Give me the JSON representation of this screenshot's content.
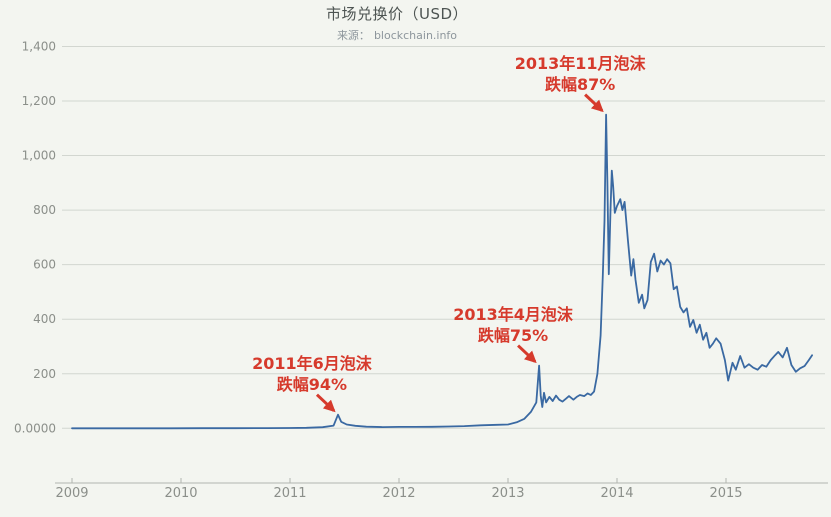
{
  "colors": {
    "background": "#f3f5f0",
    "line": "#3a69a2",
    "grid": "#d2d6d0",
    "axis": "#b2b5af",
    "tick_text": "#8b8f8a",
    "title_text": "#4d5452",
    "subtitle_text": "#8d969c",
    "annotation": "#d63a2c"
  },
  "chart_data": {
    "type": "line",
    "title": "市场兑换价（USD）",
    "source_label": "来源：",
    "source_value": "blockchain.info",
    "xlabel": "",
    "ylabel": "",
    "legend": "none",
    "grid": "horizontal",
    "xlim": [
      2009,
      2015.85
    ],
    "ylim": [
      0,
      1400
    ],
    "x_ticks": [
      2009,
      2010,
      2011,
      2012,
      2013,
      2014,
      2015
    ],
    "y_ticks": [
      {
        "label": "0.0000",
        "value": 0
      },
      {
        "label": "200",
        "value": 200
      },
      {
        "label": "400",
        "value": 400
      },
      {
        "label": "600",
        "value": 600
      },
      {
        "label": "800",
        "value": 800
      },
      {
        "label": "1,000",
        "value": 1000
      },
      {
        "label": "1,200",
        "value": 1200
      },
      {
        "label": "1,400",
        "value": 1400
      }
    ],
    "series": [
      {
        "name": "市场兑换价 (USD)",
        "points": [
          [
            2009.0,
            0
          ],
          [
            2009.3,
            0
          ],
          [
            2009.6,
            0
          ],
          [
            2009.9,
            0
          ],
          [
            2010.2,
            0.3
          ],
          [
            2010.5,
            0.3
          ],
          [
            2010.8,
            0.6
          ],
          [
            2011.0,
            1
          ],
          [
            2011.15,
            2
          ],
          [
            2011.3,
            4
          ],
          [
            2011.4,
            10
          ],
          [
            2011.44,
            50
          ],
          [
            2011.47,
            24
          ],
          [
            2011.52,
            14
          ],
          [
            2011.6,
            9
          ],
          [
            2011.7,
            6
          ],
          [
            2011.85,
            4.5
          ],
          [
            2012.0,
            5
          ],
          [
            2012.15,
            5
          ],
          [
            2012.3,
            5.5
          ],
          [
            2012.45,
            6.5
          ],
          [
            2012.6,
            8
          ],
          [
            2012.75,
            11
          ],
          [
            2012.9,
            13
          ],
          [
            2013.0,
            14
          ],
          [
            2013.08,
            22
          ],
          [
            2013.15,
            35
          ],
          [
            2013.21,
            60
          ],
          [
            2013.26,
            95
          ],
          [
            2013.285,
            230
          ],
          [
            2013.3,
            120
          ],
          [
            2013.315,
            78
          ],
          [
            2013.33,
            130
          ],
          [
            2013.35,
            95
          ],
          [
            2013.38,
            115
          ],
          [
            2013.41,
            100
          ],
          [
            2013.44,
            120
          ],
          [
            2013.47,
            105
          ],
          [
            2013.5,
            98
          ],
          [
            2013.53,
            108
          ],
          [
            2013.56,
            118
          ],
          [
            2013.6,
            105
          ],
          [
            2013.63,
            115
          ],
          [
            2013.66,
            122
          ],
          [
            2013.7,
            118
          ],
          [
            2013.73,
            128
          ],
          [
            2013.76,
            122
          ],
          [
            2013.79,
            135
          ],
          [
            2013.82,
            200
          ],
          [
            2013.85,
            340
          ],
          [
            2013.87,
            560
          ],
          [
            2013.885,
            760
          ],
          [
            2013.9,
            1150
          ],
          [
            2013.912,
            900
          ],
          [
            2013.925,
            565
          ],
          [
            2013.94,
            800
          ],
          [
            2013.952,
            945
          ],
          [
            2013.965,
            885
          ],
          [
            2013.98,
            790
          ],
          [
            2014.0,
            815
          ],
          [
            2014.03,
            840
          ],
          [
            2014.05,
            800
          ],
          [
            2014.07,
            830
          ],
          [
            2014.1,
            690
          ],
          [
            2014.13,
            560
          ],
          [
            2014.15,
            620
          ],
          [
            2014.17,
            545
          ],
          [
            2014.2,
            460
          ],
          [
            2014.23,
            490
          ],
          [
            2014.25,
            440
          ],
          [
            2014.28,
            470
          ],
          [
            2014.31,
            610
          ],
          [
            2014.34,
            640
          ],
          [
            2014.37,
            575
          ],
          [
            2014.4,
            615
          ],
          [
            2014.43,
            600
          ],
          [
            2014.46,
            620
          ],
          [
            2014.49,
            605
          ],
          [
            2014.52,
            510
          ],
          [
            2014.55,
            520
          ],
          [
            2014.58,
            445
          ],
          [
            2014.61,
            425
          ],
          [
            2014.64,
            440
          ],
          [
            2014.67,
            372
          ],
          [
            2014.7,
            397
          ],
          [
            2014.73,
            350
          ],
          [
            2014.76,
            380
          ],
          [
            2014.79,
            325
          ],
          [
            2014.82,
            350
          ],
          [
            2014.85,
            295
          ],
          [
            2014.88,
            310
          ],
          [
            2014.91,
            330
          ],
          [
            2014.95,
            310
          ],
          [
            2014.99,
            250
          ],
          [
            2015.02,
            175
          ],
          [
            2015.06,
            240
          ],
          [
            2015.09,
            215
          ],
          [
            2015.13,
            265
          ],
          [
            2015.17,
            222
          ],
          [
            2015.21,
            235
          ],
          [
            2015.25,
            222
          ],
          [
            2015.29,
            215
          ],
          [
            2015.33,
            232
          ],
          [
            2015.37,
            226
          ],
          [
            2015.41,
            250
          ],
          [
            2015.45,
            268
          ],
          [
            2015.48,
            280
          ],
          [
            2015.52,
            260
          ],
          [
            2015.56,
            295
          ],
          [
            2015.6,
            232
          ],
          [
            2015.64,
            207
          ],
          [
            2015.68,
            220
          ],
          [
            2015.72,
            228
          ],
          [
            2015.76,
            250
          ],
          [
            2015.79,
            268
          ]
        ]
      }
    ],
    "annotations": [
      {
        "lines": [
          "2013年11月泡沫",
          "跌幅87%"
        ],
        "target_year": 2013.9,
        "target_value": 1150
      },
      {
        "lines": [
          "2013年4月泡沫",
          "跌幅75%"
        ],
        "target_year": 2013.285,
        "target_value": 230
      },
      {
        "lines": [
          "2011年6月泡沫",
          "跌幅94%"
        ],
        "target_year": 2011.44,
        "target_value": 50
      }
    ]
  }
}
